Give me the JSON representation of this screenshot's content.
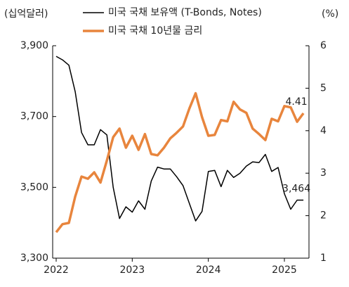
{
  "chart_data": {
    "type": "line",
    "y_label": "(십억달러)",
    "y2_label": "(%)",
    "x": [
      2022.0,
      2022.083,
      2022.167,
      2022.25,
      2022.333,
      2022.417,
      2022.5,
      2022.583,
      2022.667,
      2022.75,
      2022.833,
      2022.917,
      2023.0,
      2023.083,
      2023.167,
      2023.25,
      2023.333,
      2023.417,
      2023.5,
      2023.583,
      2023.667,
      2023.75,
      2023.833,
      2023.917,
      2024.0,
      2024.083,
      2024.167,
      2024.25,
      2024.333,
      2024.417,
      2024.5,
      2024.583,
      2024.667,
      2024.75,
      2024.833,
      2024.917,
      2025.0,
      2025.083,
      2025.167,
      2025.25
    ],
    "series": [
      {
        "name": "미국 국채 보유액 (T-Bonds, Notes)",
        "color": "#000000",
        "axis": "y",
        "values": [
          3870,
          3860,
          3845,
          3770,
          3655,
          3620,
          3620,
          3663,
          3648,
          3500,
          3412,
          3445,
          3430,
          3462,
          3438,
          3518,
          3557,
          3552,
          3552,
          3530,
          3505,
          3455,
          3405,
          3432,
          3545,
          3548,
          3502,
          3548,
          3528,
          3540,
          3560,
          3572,
          3570,
          3593,
          3545,
          3556,
          3482,
          3438,
          3464,
          3464
        ]
      },
      {
        "name": "미국 국채 10년물 금리",
        "color": "#e8853d",
        "axis": "y2",
        "values": [
          1.61,
          1.8,
          1.83,
          2.45,
          2.92,
          2.87,
          3.02,
          2.78,
          3.3,
          3.85,
          4.05,
          3.6,
          3.88,
          3.55,
          3.92,
          3.45,
          3.42,
          3.6,
          3.82,
          3.95,
          4.1,
          4.52,
          4.88,
          4.32,
          3.88,
          3.9,
          4.25,
          4.22,
          4.68,
          4.5,
          4.42,
          4.05,
          3.92,
          3.78,
          4.28,
          4.22,
          4.58,
          4.55,
          4.21,
          4.41
        ]
      }
    ],
    "annotations": [
      "3,464",
      "4.41"
    ],
    "xlim": [
      2021.954,
      2025.323
    ],
    "xticks": [
      2022,
      2023,
      2024,
      2025
    ],
    "ylim": [
      3300,
      3900
    ],
    "yticks": [
      {
        "value": 3300,
        "label": "3,300"
      },
      {
        "value": 3500,
        "label": "3,500"
      },
      {
        "value": 3700,
        "label": "3,700"
      },
      {
        "value": 3900,
        "label": "3,900"
      }
    ],
    "y2lim": [
      1,
      6
    ],
    "y2ticks": [
      1,
      2,
      3,
      4,
      5,
      6
    ]
  }
}
